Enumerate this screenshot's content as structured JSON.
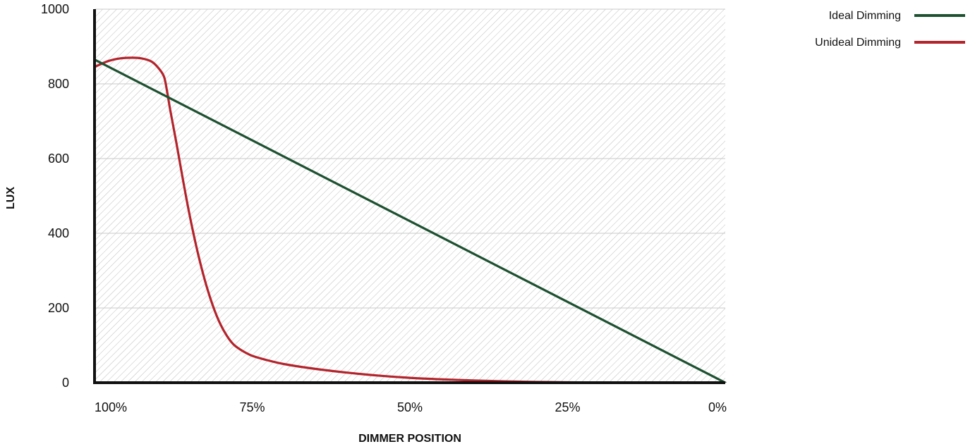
{
  "chart_data": {
    "type": "line",
    "xlabel": "DIMMER POSITION",
    "ylabel": "LUX",
    "x_tick_labels": [
      "100%",
      "75%",
      "50%",
      "25%",
      "0%"
    ],
    "x_tick_values": [
      100,
      75,
      50,
      25,
      0
    ],
    "xlim": [
      100,
      0
    ],
    "y_ticks": [
      0,
      200,
      400,
      600,
      800,
      1000
    ],
    "ylim": [
      0,
      1000
    ],
    "grid": "horizontal",
    "background": "diagonal-hatch",
    "legend_position": "top-right",
    "series": [
      {
        "name": "Ideal Dimming",
        "color": "#1d5130",
        "x": [
          100,
          0
        ],
        "y": [
          865,
          0
        ]
      },
      {
        "name": "Unideal Dimming",
        "color": "#b3242c",
        "x": [
          100,
          98,
          96,
          94,
          92.5,
          91,
          90,
          89,
          88.5,
          88,
          87,
          86,
          85,
          84,
          83,
          82,
          81,
          80,
          79,
          78,
          77,
          76,
          75,
          73,
          70,
          65,
          60,
          55,
          50,
          45,
          40,
          35,
          30,
          25,
          22,
          20,
          19
        ],
        "y": [
          845,
          860,
          868,
          870,
          868,
          860,
          845,
          820,
          780,
          730,
          640,
          545,
          455,
          375,
          305,
          245,
          195,
          155,
          125,
          103,
          90,
          80,
          72,
          62,
          50,
          37,
          27,
          19,
          13,
          9,
          6,
          3.5,
          2,
          1,
          0.5,
          0.2,
          0
        ]
      }
    ]
  }
}
